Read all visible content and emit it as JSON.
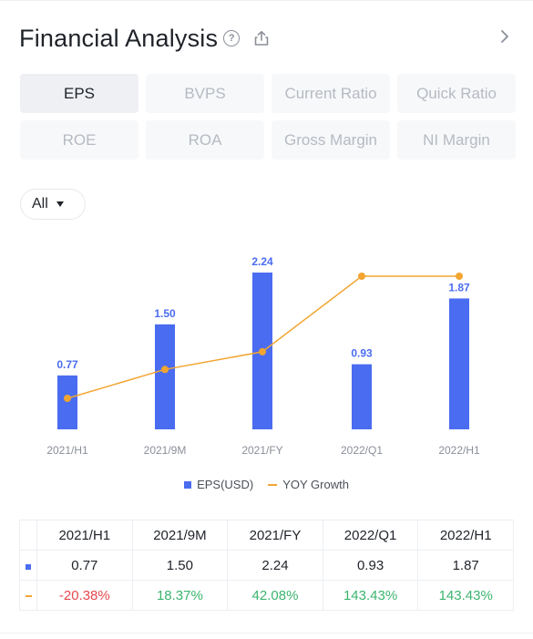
{
  "header": {
    "title": "Financial Analysis",
    "help_icon": "question-circle-icon",
    "share_icon": "share-icon",
    "nav_icon": "chevron-right-icon"
  },
  "tabs": [
    {
      "label": "EPS",
      "active": true
    },
    {
      "label": "BVPS",
      "active": false
    },
    {
      "label": "Current Ratio",
      "active": false
    },
    {
      "label": "Quick Ratio",
      "active": false
    },
    {
      "label": "ROE",
      "active": false
    },
    {
      "label": "ROA",
      "active": false
    },
    {
      "label": "Gross Margin",
      "active": false
    },
    {
      "label": "NI Margin",
      "active": false
    }
  ],
  "filter": {
    "selected": "All"
  },
  "colors": {
    "bar": "#4a6cf0",
    "line": "#f2a531",
    "positive": "#3bb46e",
    "negative": "#e5484d"
  },
  "chart_data": {
    "type": "bar",
    "categories": [
      "2021/H1",
      "2021/9M",
      "2021/FY",
      "2022/Q1",
      "2022/H1"
    ],
    "series": [
      {
        "name": "EPS(USD)",
        "type": "bar",
        "values": [
          0.77,
          1.5,
          2.24,
          0.93,
          1.87
        ],
        "labels": [
          "0.77",
          "1.50",
          "2.24",
          "0.93",
          "1.87"
        ]
      },
      {
        "name": "YOY Growth",
        "type": "line",
        "values": [
          -20.38,
          18.37,
          42.08,
          143.43,
          143.43
        ]
      }
    ],
    "legend": "bottom",
    "grid": false
  },
  "table": {
    "headers": [
      "2021/H1",
      "2021/9M",
      "2021/FY",
      "2022/Q1",
      "2022/H1"
    ],
    "eps_row": [
      "0.77",
      "1.50",
      "2.24",
      "0.93",
      "1.87"
    ],
    "yoy_row": [
      "-20.38%",
      "18.37%",
      "42.08%",
      "143.43%",
      "143.43%"
    ]
  }
}
